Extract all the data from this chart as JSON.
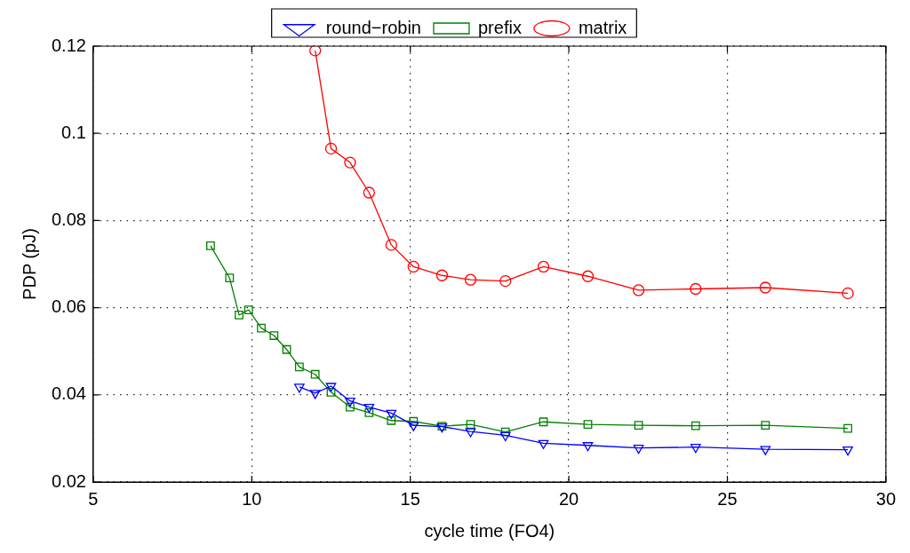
{
  "chart_data": {
    "type": "line",
    "xlabel": "cycle time (FO4)",
    "ylabel": "PDP (pJ)",
    "xlim": [
      5,
      30
    ],
    "xticks": [
      5,
      10,
      15,
      20,
      25,
      30
    ],
    "ylim": [
      0.02,
      0.12
    ],
    "yticks": [
      0.02,
      0.04,
      0.06,
      0.08,
      0.1,
      0.12
    ],
    "grid": true,
    "legend": "top",
    "line_style": "solid",
    "series": [
      {
        "name": "round−robin",
        "color": "#0000ff",
        "marker": "triangle",
        "x": [
          11.5,
          12.0,
          12.5,
          13.1,
          13.7,
          14.4,
          15.1,
          16.0,
          16.9,
          18.0,
          19.2,
          20.6,
          22.2,
          24.0,
          26.2,
          28.8
        ],
        "values": [
          0.0418,
          0.0404,
          0.042,
          0.0386,
          0.0372,
          0.0358,
          0.033,
          0.0327,
          0.0316,
          0.0307,
          0.0289,
          0.0284,
          0.0278,
          0.028,
          0.0275,
          0.0274
        ]
      },
      {
        "name": "prefix",
        "color": "#008000",
        "marker": "square",
        "x": [
          8.7,
          9.3,
          9.6,
          9.9,
          10.3,
          10.7,
          11.1,
          11.5,
          12.0,
          12.5,
          13.1,
          13.7,
          14.4,
          15.1,
          16.0,
          16.9,
          18.0,
          19.2,
          20.6,
          22.2,
          24.0,
          26.2,
          28.8
        ],
        "values": [
          0.0742,
          0.0668,
          0.0583,
          0.0595,
          0.0553,
          0.0536,
          0.0504,
          0.0464,
          0.0447,
          0.0406,
          0.0372,
          0.0359,
          0.0341,
          0.0339,
          0.0328,
          0.0332,
          0.0315,
          0.0338,
          0.0332,
          0.033,
          0.0329,
          0.033,
          0.0323
        ]
      },
      {
        "name": "matrix",
        "color": "#ff0000",
        "marker": "circle",
        "x": [
          12.0,
          12.5,
          13.1,
          13.7,
          14.4,
          15.1,
          16.0,
          16.9,
          18.0,
          19.2,
          20.6,
          22.2,
          24.0,
          26.2,
          28.8
        ],
        "values": [
          0.119,
          0.0965,
          0.0933,
          0.0864,
          0.0744,
          0.0694,
          0.0674,
          0.0664,
          0.0661,
          0.0694,
          0.0672,
          0.064,
          0.0643,
          0.0646,
          0.0633
        ]
      }
    ]
  }
}
